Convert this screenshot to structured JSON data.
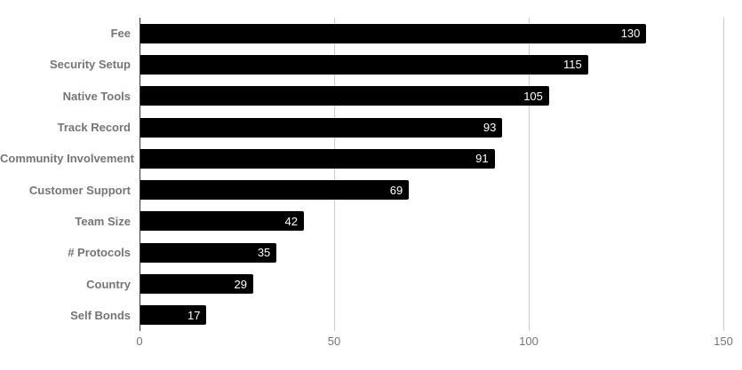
{
  "colors": {
    "bar": "#000000",
    "bar_value_text": "#ffffff",
    "category_label": "#757575",
    "tick_label": "#757575",
    "gridline": "#cccccc",
    "axis_baseline": "#333333",
    "background": "#ffffff"
  },
  "chart_data": {
    "type": "bar",
    "orientation": "horizontal",
    "title": "",
    "xlabel": "",
    "ylabel": "",
    "categories": [
      "Fee",
      "Security Setup",
      "Native Tools",
      "Track Record",
      "Community Involvement",
      "Customer Support",
      "Team Size",
      "# Protocols",
      "Country",
      "Self Bonds"
    ],
    "values": [
      130,
      115,
      105,
      93,
      91,
      69,
      42,
      35,
      29,
      17
    ],
    "value_labels": [
      "130",
      "115",
      "105",
      "93",
      "91",
      "69",
      "42",
      "35",
      "29",
      "17"
    ],
    "xlim": [
      0,
      150
    ],
    "xticks": [
      0,
      50,
      100,
      150
    ],
    "xtick_labels": [
      "0",
      "50",
      "100",
      "150"
    ],
    "grid": true,
    "legend_position": "none",
    "bar_color": "#000000",
    "value_label_position": "inside-end"
  }
}
